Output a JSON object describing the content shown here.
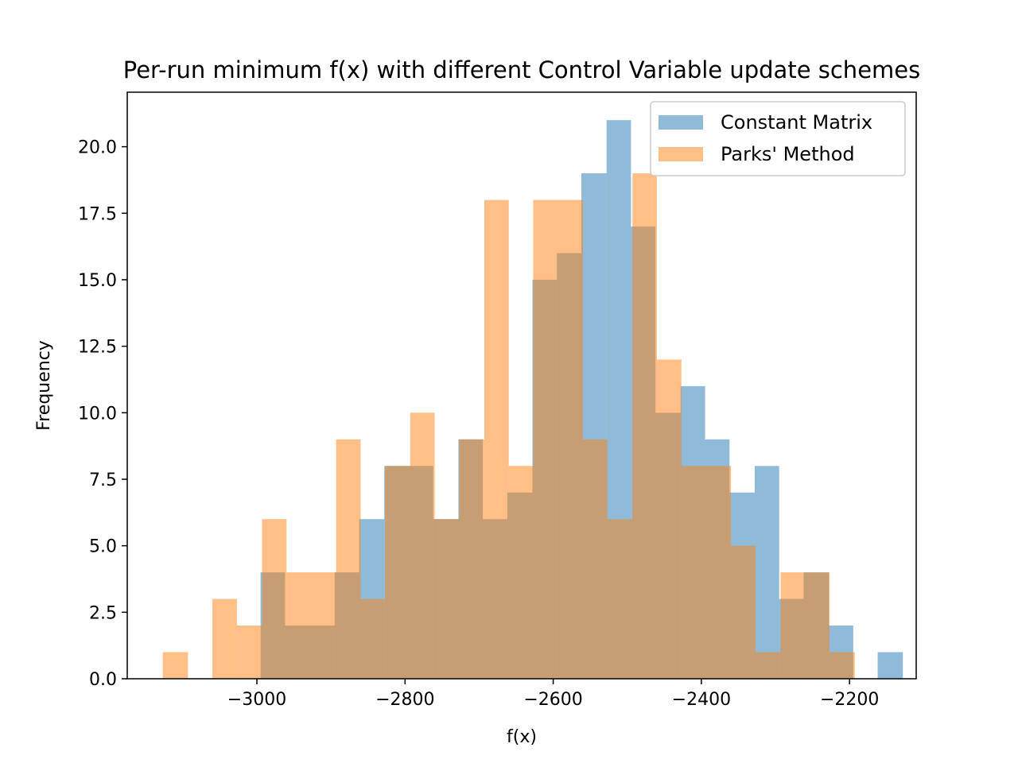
{
  "chart_data": {
    "type": "bar",
    "title": "Per-run minimum f(x) with different Control Variable update schemes",
    "xlabel": "f(x)",
    "ylabel": "Frequency",
    "xlim": [
      -3175,
      -2110
    ],
    "ylim": [
      0,
      22.05
    ],
    "xticks": [
      -3000,
      -2800,
      -2600,
      -2400,
      -2200
    ],
    "xtick_labels": [
      "−3000",
      "−2800",
      "−2600",
      "−2400",
      "−2200"
    ],
    "yticks": [
      0,
      2.5,
      5,
      7.5,
      10,
      12.5,
      15,
      17.5,
      20
    ],
    "ytick_labels": [
      "0.0",
      "2.5",
      "5.0",
      "7.5",
      "10.0",
      "12.5",
      "15.0",
      "17.5",
      "20.0"
    ],
    "grid": false,
    "legend_position": "top-right",
    "series": [
      {
        "name": "Constant Matrix",
        "color": "#1f77b4",
        "opacity": 0.5,
        "bins": [
          [
            -2995,
            -2962,
            4
          ],
          [
            -2962,
            -2928,
            2
          ],
          [
            -2928,
            -2895,
            2
          ],
          [
            -2895,
            -2862,
            4
          ],
          [
            -2862,
            -2828,
            6
          ],
          [
            -2828,
            -2795,
            8
          ],
          [
            -2795,
            -2762,
            8
          ],
          [
            -2762,
            -2728,
            6
          ],
          [
            -2728,
            -2695,
            9
          ],
          [
            -2695,
            -2662,
            6
          ],
          [
            -2662,
            -2628,
            7
          ],
          [
            -2628,
            -2595,
            15
          ],
          [
            -2595,
            -2562,
            16
          ],
          [
            -2562,
            -2528,
            19
          ],
          [
            -2528,
            -2495,
            21
          ],
          [
            -2495,
            -2462,
            17
          ],
          [
            -2462,
            -2428,
            10
          ],
          [
            -2428,
            -2395,
            11
          ],
          [
            -2395,
            -2362,
            9
          ],
          [
            -2362,
            -2328,
            7
          ],
          [
            -2328,
            -2295,
            8
          ],
          [
            -2295,
            -2262,
            3
          ],
          [
            -2262,
            -2228,
            4
          ],
          [
            -2228,
            -2195,
            2
          ],
          [
            -2195,
            -2162,
            0
          ],
          [
            -2162,
            -2128,
            1
          ]
        ]
      },
      {
        "name": "Parks' Method",
        "color": "#ff7f0e",
        "opacity": 0.5,
        "bins": [
          [
            -3127,
            -3093,
            1
          ],
          [
            -3093,
            -3060,
            0
          ],
          [
            -3060,
            -3027,
            3
          ],
          [
            -3027,
            -2993,
            2
          ],
          [
            -2993,
            -2960,
            6
          ],
          [
            -2960,
            -2927,
            4
          ],
          [
            -2927,
            -2893,
            4
          ],
          [
            -2893,
            -2860,
            9
          ],
          [
            -2860,
            -2827,
            3
          ],
          [
            -2827,
            -2793,
            8
          ],
          [
            -2793,
            -2760,
            10
          ],
          [
            -2760,
            -2727,
            6
          ],
          [
            -2727,
            -2693,
            9
          ],
          [
            -2693,
            -2660,
            18
          ],
          [
            -2660,
            -2627,
            8
          ],
          [
            -2627,
            -2593,
            18
          ],
          [
            -2593,
            -2560,
            18
          ],
          [
            -2560,
            -2527,
            9
          ],
          [
            -2527,
            -2493,
            6
          ],
          [
            -2493,
            -2460,
            19
          ],
          [
            -2460,
            -2427,
            12
          ],
          [
            -2427,
            -2393,
            8
          ],
          [
            -2393,
            -2360,
            8
          ],
          [
            -2360,
            -2327,
            5
          ],
          [
            -2327,
            -2293,
            1
          ],
          [
            -2293,
            -2260,
            4
          ],
          [
            -2260,
            -2227,
            4
          ],
          [
            -2227,
            -2193,
            1
          ]
        ]
      }
    ]
  }
}
